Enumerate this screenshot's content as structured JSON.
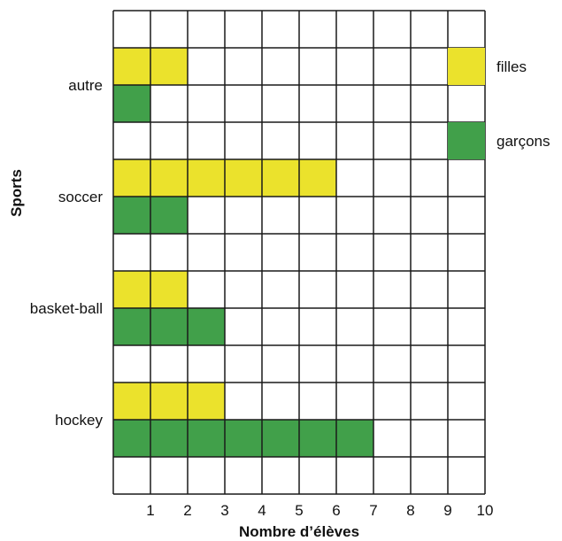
{
  "chart_data": {
    "type": "bar",
    "orientation": "horizontal",
    "xlabel": "Nombre d’élèves",
    "ylabel": "Sports",
    "xlim": [
      0,
      10
    ],
    "x_ticks": [
      1,
      2,
      3,
      4,
      5,
      6,
      7,
      8,
      9,
      10
    ],
    "categories": [
      "autre",
      "soccer",
      "basket-ball",
      "hockey"
    ],
    "series": [
      {
        "name": "filles",
        "color": "#ebe22c",
        "values": [
          2,
          6,
          2,
          3
        ]
      },
      {
        "name": "garçons",
        "color": "#41a04a",
        "values": [
          1,
          2,
          3,
          7
        ]
      }
    ],
    "legend_position": "right",
    "grid": true
  }
}
